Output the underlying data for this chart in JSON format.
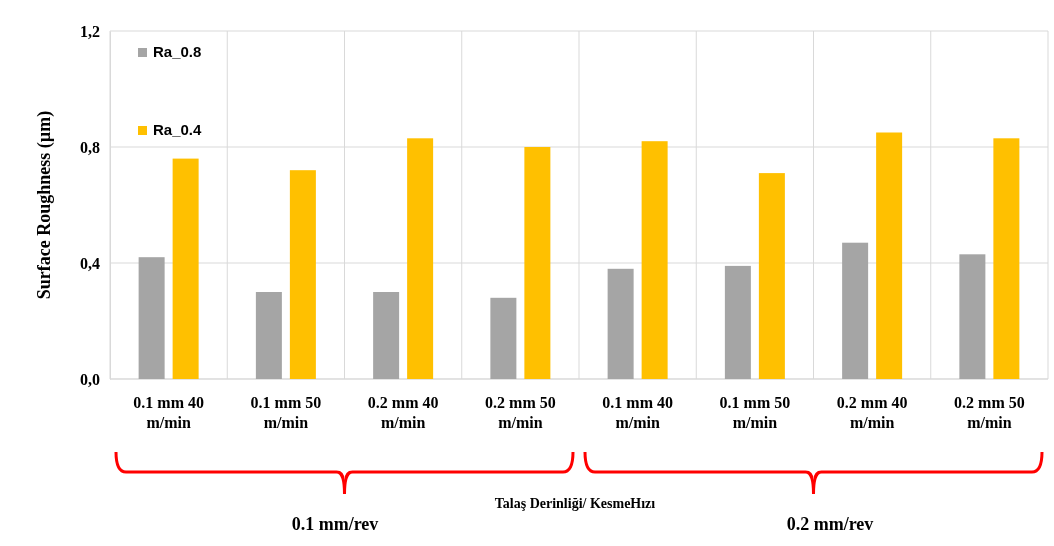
{
  "chart_data": {
    "type": "bar",
    "ylabel": "Surface Roughness (µm)",
    "xlabel": "Talaş Derinliği/ KesmeHızı",
    "categories": [
      "0.1 mm 40 m/min",
      "0.1 mm 50 m/min",
      "0.2 mm 40 m/min",
      "0.2 mm 50 m/min",
      "0.1 mm 40 m/min",
      "0.1 mm 50 m/min",
      "0.2 mm 40 m/min",
      "0.2 mm 50 m/min"
    ],
    "series": [
      {
        "name": "Ra_0.8",
        "color": "#a5a5a5",
        "values": [
          0.42,
          0.3,
          0.3,
          0.28,
          0.38,
          0.39,
          0.47,
          0.43
        ]
      },
      {
        "name": "Ra_0.4",
        "color": "#ffc000",
        "values": [
          0.76,
          0.72,
          0.83,
          0.8,
          0.82,
          0.71,
          0.85,
          0.83
        ]
      }
    ],
    "ylim": [
      0,
      1.2
    ],
    "yticks": [
      {
        "value": 0,
        "label": "0,0"
      },
      {
        "value": 0.4,
        "label": "0,4"
      },
      {
        "value": 0.8,
        "label": "0,8"
      },
      {
        "value": 1.2,
        "label": "1,2"
      }
    ],
    "grid": true,
    "legend": "top left",
    "annotations": [
      "0.1 mm/rev",
      "0.2 mm/rev"
    ]
  }
}
